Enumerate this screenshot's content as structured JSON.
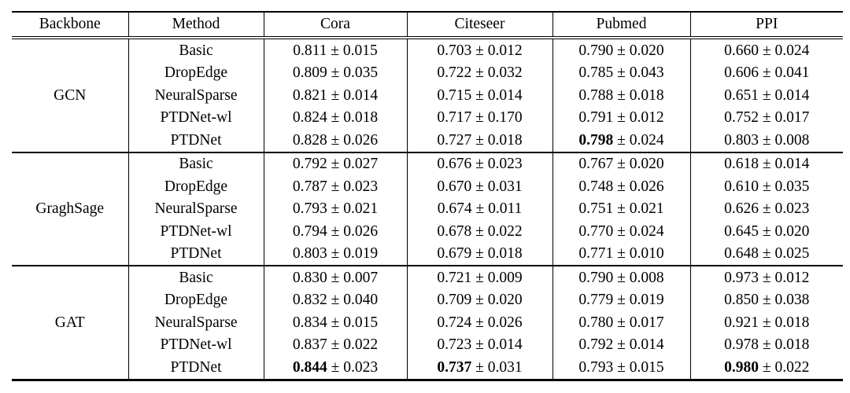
{
  "colors": {
    "background": "#ffffff",
    "text": "#000000",
    "border": "#000000"
  },
  "table": {
    "separator": "±",
    "columns": [
      "Backbone",
      "Method",
      "Cora",
      "Citeseer",
      "Pubmed",
      "PPI"
    ],
    "groups": [
      {
        "backbone": "GCN",
        "rows": [
          {
            "method": "Basic",
            "cells": [
              {
                "mean": "0.811",
                "std": "0.015",
                "bold": false
              },
              {
                "mean": "0.703",
                "std": "0.012",
                "bold": false
              },
              {
                "mean": "0.790",
                "std": "0.020",
                "bold": false
              },
              {
                "mean": "0.660",
                "std": "0.024",
                "bold": false
              }
            ]
          },
          {
            "method": "DropEdge",
            "cells": [
              {
                "mean": "0.809",
                "std": "0.035",
                "bold": false
              },
              {
                "mean": "0.722",
                "std": "0.032",
                "bold": false
              },
              {
                "mean": "0.785",
                "std": "0.043",
                "bold": false
              },
              {
                "mean": "0.606",
                "std": "0.041",
                "bold": false
              }
            ]
          },
          {
            "method": "NeuralSparse",
            "cells": [
              {
                "mean": "0.821",
                "std": "0.014",
                "bold": false
              },
              {
                "mean": "0.715",
                "std": "0.014",
                "bold": false
              },
              {
                "mean": "0.788",
                "std": "0.018",
                "bold": false
              },
              {
                "mean": "0.651",
                "std": "0.014",
                "bold": false
              }
            ]
          },
          {
            "method": "PTDNet-wl",
            "cells": [
              {
                "mean": "0.824",
                "std": "0.018",
                "bold": false
              },
              {
                "mean": "0.717",
                "std": "0.170",
                "bold": false
              },
              {
                "mean": "0.791",
                "std": "0.012",
                "bold": false
              },
              {
                "mean": "0.752",
                "std": "0.017",
                "bold": false
              }
            ]
          },
          {
            "method": "PTDNet",
            "cells": [
              {
                "mean": "0.828",
                "std": "0.026",
                "bold": false
              },
              {
                "mean": "0.727",
                "std": "0.018",
                "bold": false
              },
              {
                "mean": "0.798",
                "std": "0.024",
                "bold": true
              },
              {
                "mean": "0.803",
                "std": "0.008",
                "bold": false
              }
            ]
          }
        ]
      },
      {
        "backbone": "GraghSage",
        "rows": [
          {
            "method": "Basic",
            "cells": [
              {
                "mean": "0.792",
                "std": "0.027",
                "bold": false
              },
              {
                "mean": "0.676",
                "std": "0.023",
                "bold": false
              },
              {
                "mean": "0.767",
                "std": "0.020",
                "bold": false
              },
              {
                "mean": "0.618",
                "std": "0.014",
                "bold": false
              }
            ]
          },
          {
            "method": "DropEdge",
            "cells": [
              {
                "mean": "0.787",
                "std": "0.023",
                "bold": false
              },
              {
                "mean": "0.670",
                "std": "0.031",
                "bold": false
              },
              {
                "mean": "0.748",
                "std": "0.026",
                "bold": false
              },
              {
                "mean": "0.610",
                "std": "0.035",
                "bold": false
              }
            ]
          },
          {
            "method": "NeuralSparse",
            "cells": [
              {
                "mean": "0.793",
                "std": "0.021",
                "bold": false
              },
              {
                "mean": "0.674",
                "std": "0.011",
                "bold": false
              },
              {
                "mean": "0.751",
                "std": "0.021",
                "bold": false
              },
              {
                "mean": "0.626",
                "std": "0.023",
                "bold": false
              }
            ]
          },
          {
            "method": "PTDNet-wl",
            "cells": [
              {
                "mean": "0.794",
                "std": "0.026",
                "bold": false
              },
              {
                "mean": "0.678",
                "std": "0.022",
                "bold": false
              },
              {
                "mean": "0.770",
                "std": "0.024",
                "bold": false
              },
              {
                "mean": "0.645",
                "std": "0.020",
                "bold": false
              }
            ]
          },
          {
            "method": "PTDNet",
            "cells": [
              {
                "mean": "0.803",
                "std": "0.019",
                "bold": false
              },
              {
                "mean": "0.679",
                "std": "0.018",
                "bold": false
              },
              {
                "mean": "0.771",
                "std": "0.010",
                "bold": false
              },
              {
                "mean": "0.648",
                "std": "0.025",
                "bold": false
              }
            ]
          }
        ]
      },
      {
        "backbone": "GAT",
        "rows": [
          {
            "method": "Basic",
            "cells": [
              {
                "mean": "0.830",
                "std": "0.007",
                "bold": false
              },
              {
                "mean": "0.721",
                "std": "0.009",
                "bold": false
              },
              {
                "mean": "0.790",
                "std": "0.008",
                "bold": false
              },
              {
                "mean": "0.973",
                "std": "0.012",
                "bold": false
              }
            ]
          },
          {
            "method": "DropEdge",
            "cells": [
              {
                "mean": "0.832",
                "std": "0.040",
                "bold": false
              },
              {
                "mean": "0.709",
                "std": "0.020",
                "bold": false
              },
              {
                "mean": "0.779",
                "std": "0.019",
                "bold": false
              },
              {
                "mean": "0.850",
                "std": "0.038",
                "bold": false
              }
            ]
          },
          {
            "method": "NeuralSparse",
            "cells": [
              {
                "mean": "0.834",
                "std": "0.015",
                "bold": false
              },
              {
                "mean": "0.724",
                "std": "0.026",
                "bold": false
              },
              {
                "mean": "0.780",
                "std": "0.017",
                "bold": false
              },
              {
                "mean": "0.921",
                "std": "0.018",
                "bold": false
              }
            ]
          },
          {
            "method": "PTDNet-wl",
            "cells": [
              {
                "mean": "0.837",
                "std": "0.022",
                "bold": false
              },
              {
                "mean": "0.723",
                "std": "0.014",
                "bold": false
              },
              {
                "mean": "0.792",
                "std": "0.014",
                "bold": false
              },
              {
                "mean": "0.978",
                "std": "0.018",
                "bold": false
              }
            ]
          },
          {
            "method": "PTDNet",
            "cells": [
              {
                "mean": "0.844",
                "std": "0.023",
                "bold": true
              },
              {
                "mean": "0.737",
                "std": "0.031",
                "bold": true
              },
              {
                "mean": "0.793",
                "std": "0.015",
                "bold": false
              },
              {
                "mean": "0.980",
                "std": "0.022",
                "bold": true
              }
            ]
          }
        ]
      }
    ]
  }
}
